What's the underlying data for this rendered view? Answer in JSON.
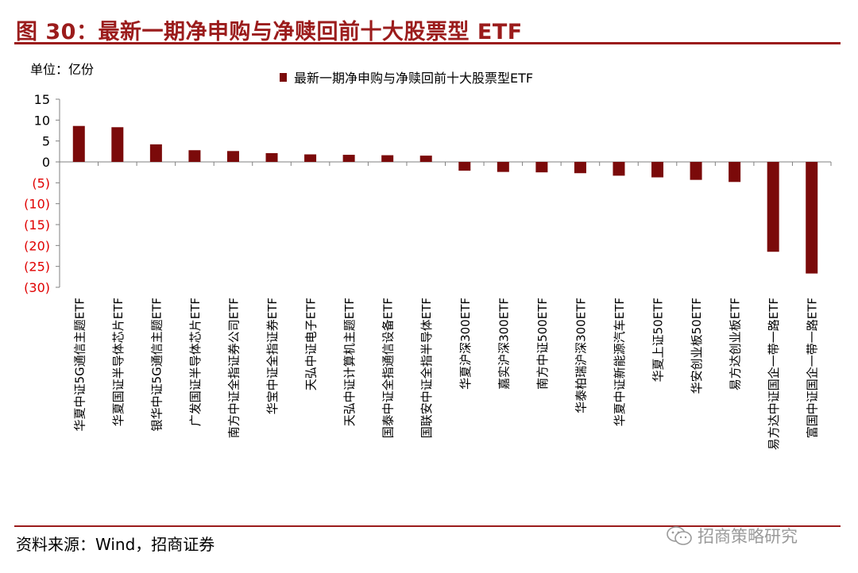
{
  "figure": {
    "title": "图 30：最新一期净申购与净赎回前十大股票型 ETF",
    "unit_label": "单位：亿份",
    "source": "资料来源：Wind，招商证券",
    "watermark": "招商策略研究"
  },
  "colors": {
    "accent": "#9b1c1c",
    "bar": "#7b0a0a",
    "negative_tick": "#e00000",
    "axis": "#808080"
  },
  "chart_data": {
    "type": "bar",
    "title": "",
    "xlabel": "",
    "ylabel": "单位：亿份",
    "ylim": [
      -30,
      15
    ],
    "yticks": [
      15,
      10,
      5,
      0,
      -5,
      -10,
      -15,
      -20,
      -25,
      -30
    ],
    "ytick_labels": [
      "15",
      "10",
      "5",
      "0",
      "(5)",
      "(10)",
      "(15)",
      "(20)",
      "(25)",
      "(30)"
    ],
    "legend": "top-center",
    "series": [
      {
        "name": "最新一期净申购与净赎回前十大股票型ETF",
        "values": [
          8.6,
          8.3,
          4.2,
          2.8,
          2.6,
          2.1,
          1.8,
          1.7,
          1.6,
          1.5,
          -2.1,
          -2.4,
          -2.5,
          -2.7,
          -3.3,
          -3.7,
          -4.3,
          -4.8,
          -21.5,
          -26.7
        ]
      }
    ],
    "categories": [
      "华夏中证5G通信主题ETF",
      "华夏国证半导体芯片ETF",
      "银华中证5G通信主题ETF",
      "广发国证半导体芯片ETF",
      "南方中证全指证券公司ETF",
      "华宝中证全指证券ETF",
      "天弘中证电子ETF",
      "天弘中证计算机主题ETF",
      "国泰中证全指通信设备ETF",
      "国联安中证全指半导体ETF",
      "华夏沪深300ETF",
      "嘉实沪深300ETF",
      "南方中证500ETF",
      "华泰柏瑞沪深300ETF",
      "华夏中证新能源汽车ETF",
      "华夏上证50ETF",
      "华安创业板50ETF",
      "易方达创业板ETF",
      "易方达中证国企一带一路ETF",
      "富国中证国企一带一路ETF"
    ]
  }
}
